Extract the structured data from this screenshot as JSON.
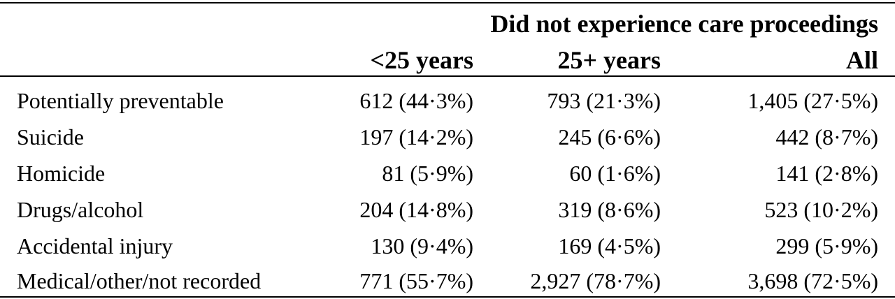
{
  "table": {
    "group_header": "Did not experience care proceedings",
    "columns": [
      "<25 years",
      "25+ years",
      "All"
    ],
    "rows": [
      {
        "label": "Potentially preventable",
        "values": [
          "612 (44·3%)",
          "793 (21·3%)",
          "1,405 (27·5%)"
        ]
      },
      {
        "label": "Suicide",
        "values": [
          "197 (14·2%)",
          "245 (6·6%)",
          "442 (8·7%)"
        ]
      },
      {
        "label": "Homicide",
        "values": [
          "81 (5·9%)",
          "60 (1·6%)",
          "141 (2·8%)"
        ]
      },
      {
        "label": "Drugs/alcohol",
        "values": [
          "204 (14·8%)",
          "319 (8·6%)",
          "523 (10·2%)"
        ]
      },
      {
        "label": "Accidental injury",
        "values": [
          "130 (9·4%)",
          "169 (4·5%)",
          "299 (5·9%)"
        ]
      },
      {
        "label": "Medical/other/not recorded",
        "values": [
          "771 (55·7%)",
          "2,927 (78·7%)",
          "3,698 (72·5%)"
        ]
      }
    ]
  }
}
